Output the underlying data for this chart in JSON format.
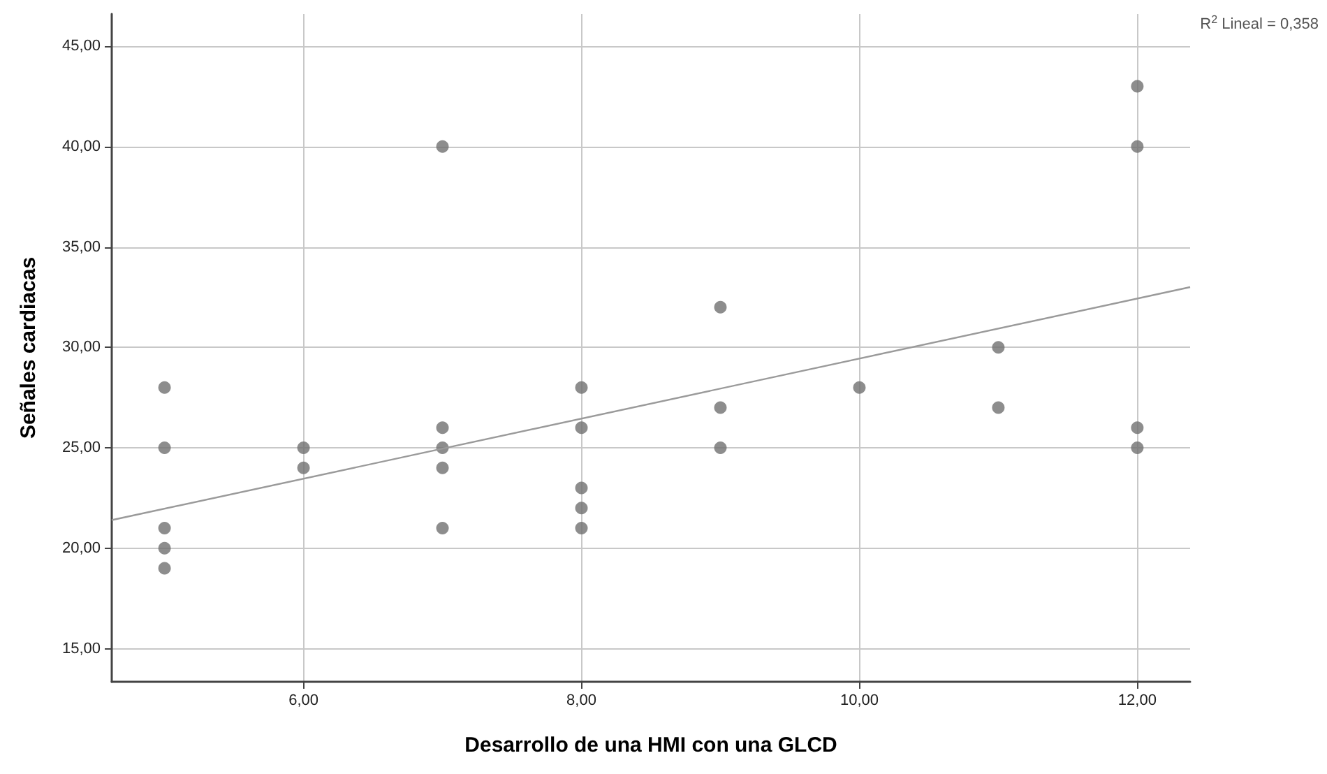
{
  "chart_data": {
    "type": "scatter",
    "xlabel": "Desarrollo de una HMI con una GLCD",
    "ylabel": "Señales cardiacas",
    "annotations": [
      "R$^{2}$ Lineal = 0,358"
    ],
    "series": [
      {
        "color": "#707070",
        "marker": "circle",
        "x": [
          5,
          5,
          5,
          5,
          5,
          6,
          6,
          7,
          7,
          7,
          7,
          7,
          8,
          8,
          8,
          8,
          8,
          9,
          9,
          9,
          10,
          11,
          11,
          12,
          12,
          12,
          12
        ],
        "values": [
          28,
          25,
          21,
          20,
          19,
          25,
          24,
          40,
          26,
          25,
          24,
          21,
          28,
          26,
          23,
          22,
          21,
          32,
          27,
          25,
          28,
          30,
          27,
          43,
          40,
          26,
          25
        ]
      },
      {
        "type": "line",
        "color": "#9a9a9a",
        "line_style": "solid",
        "marker": "none",
        "x": [
          4.62,
          12.38
        ],
        "values": [
          21.4,
          33.0
        ]
      }
    ],
    "xlim": [
      4.62,
      12.38
    ],
    "ylim": [
      13.35,
      46.6
    ],
    "xticks": [
      {
        "value": 6,
        "label": "6,00"
      },
      {
        "value": 8,
        "label": "8,00"
      },
      {
        "value": 10,
        "label": "10,00"
      },
      {
        "value": 12,
        "label": "12,00"
      }
    ],
    "yticks": [
      {
        "value": 15,
        "label": "15,00"
      },
      {
        "value": 20,
        "label": "20,00"
      },
      {
        "value": 25,
        "label": "25,00"
      },
      {
        "value": 30,
        "label": "30,00"
      },
      {
        "value": 35,
        "label": "35,00"
      },
      {
        "value": 40,
        "label": "40,00"
      },
      {
        "value": 45,
        "label": "45,00"
      }
    ],
    "grid": true
  }
}
